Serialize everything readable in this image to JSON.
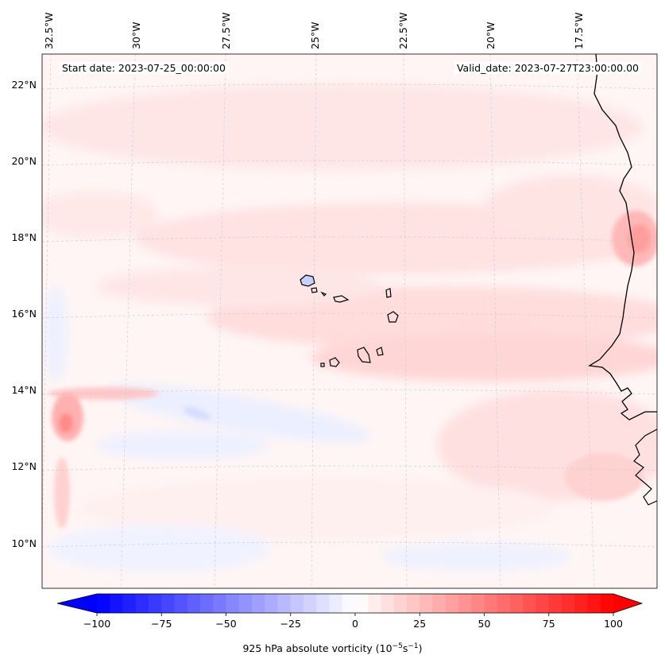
{
  "map": {
    "variable_label": "925 hPa absolute vorticity (10",
    "variable_unit_exp1": "−5",
    "variable_unit_mid": "s",
    "variable_unit_exp2": "−1",
    "variable_label_close": ")",
    "start_date": "Start date: 2023-07-25_00:00:00",
    "valid_date": "Valid_date: 2023-07-27T23:00:00.00",
    "lon_ticks": [
      "32.5°W",
      "30°W",
      "27.5°W",
      "25°W",
      "22.5°W",
      "20°W",
      "17.5°W"
    ],
    "lat_ticks": [
      "22°N",
      "20°N",
      "18°N",
      "16°N",
      "14°N",
      "12°N",
      "10°N"
    ],
    "extent": {
      "lon_min": -32.5,
      "lon_max": -16.0,
      "lat_min": 8.9,
      "lat_max": 22.8
    },
    "colors": {
      "neg_max": "#0000ff",
      "zero": "#ffffff",
      "pos_max": "#ff0000",
      "coast": "#000000"
    }
  },
  "colorbar": {
    "min": -100,
    "max": 100,
    "ticks": [
      -100,
      -75,
      -50,
      -25,
      0,
      25,
      50,
      75,
      100
    ],
    "tick_labels": [
      "−100",
      "−75",
      "−50",
      "−25",
      "0",
      "25",
      "50",
      "75",
      "100"
    ],
    "extend": "both",
    "levels": 40
  }
}
